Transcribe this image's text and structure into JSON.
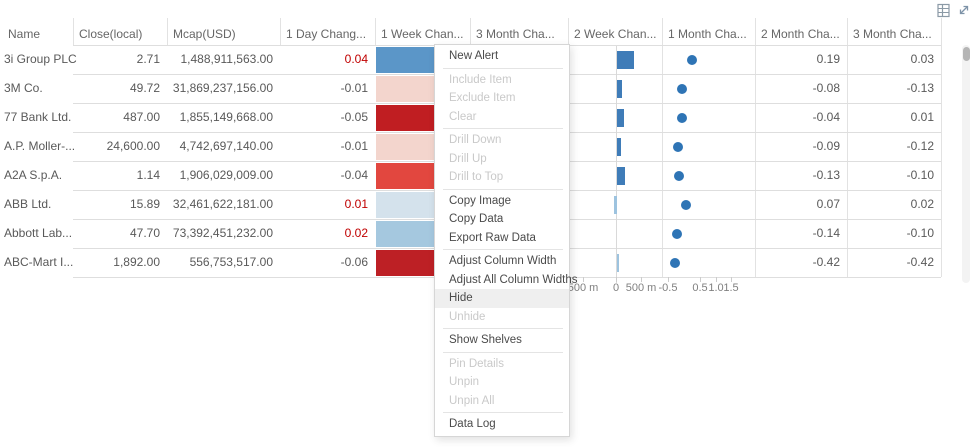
{
  "toolbar": {
    "export_icon": "export-to-excel",
    "expand_icon": "maximize"
  },
  "table": {
    "headers": [
      {
        "id": "name",
        "label": "Name"
      },
      {
        "id": "close",
        "label": "Close(local)"
      },
      {
        "id": "mcap",
        "label": "Mcap(USD)"
      },
      {
        "id": "day1",
        "label": "1 Day Chang..."
      },
      {
        "id": "week1",
        "label": "1 Week Chan..."
      },
      {
        "id": "month3a",
        "label": "3 Month Cha..."
      },
      {
        "id": "week2",
        "label": "2 Week Chan..."
      },
      {
        "id": "month1",
        "label": "1 Month Cha..."
      },
      {
        "id": "month2",
        "label": "2 Month Cha..."
      },
      {
        "id": "month3b",
        "label": "3 Month Cha..."
      }
    ],
    "rows": [
      {
        "name": "3i Group PLC",
        "close": "2.71",
        "mcap": "1,488,911,563.00",
        "day1": "0.04",
        "week1_color": "#5b96c8",
        "week2_bar": 0.34,
        "week2_light": false,
        "month1_dot": 0.25,
        "month2": "0.19",
        "month3": "0.03"
      },
      {
        "name": "3M Co.",
        "close": "49.72",
        "mcap": "31,869,237,156.00",
        "day1": "-0.01",
        "week1_color": "#f3d5cd",
        "week2_bar": 0.1,
        "week2_light": false,
        "month1_dot": -0.06,
        "month2": "-0.08",
        "month3": "-0.13"
      },
      {
        "name": "77 Bank Ltd.",
        "close": "487.00",
        "mcap": "1,855,149,668.00",
        "day1": "-0.05",
        "week1_color": "#c01e22",
        "week2_bar": 0.14,
        "week2_light": false,
        "month1_dot": -0.06,
        "month2": "-0.04",
        "month3": "0.01"
      },
      {
        "name": "A.P. Moller-...",
        "close": "24,600.00",
        "mcap": "4,742,697,140.00",
        "day1": "-0.01",
        "week1_color": "#f3d5cd",
        "week2_bar": 0.08,
        "week2_light": false,
        "month1_dot": -0.19,
        "month2": "-0.09",
        "month3": "-0.12"
      },
      {
        "name": "A2A S.p.A.",
        "close": "1.14",
        "mcap": "1,906,029,009.00",
        "day1": "-0.04",
        "week1_color": "#e2473f",
        "week2_bar": 0.16,
        "week2_light": false,
        "month1_dot": -0.16,
        "month2": "-0.13",
        "month3": "-0.10"
      },
      {
        "name": "ABB Ltd.",
        "close": "15.89",
        "mcap": "32,461,622,181.00",
        "day1": "0.01",
        "week1_color": "#d4e2ec",
        "week2_bar": -0.06,
        "week2_light": true,
        "month1_dot": 0.06,
        "month2": "0.07",
        "month3": "0.02"
      },
      {
        "name": "Abbott Lab...",
        "close": "47.70",
        "mcap": "73,392,451,232.00",
        "day1": "0.02",
        "week1_color": "#a5c8df",
        "week2_bar": 0,
        "week2_light": false,
        "month1_dot": -0.22,
        "month2": "-0.14",
        "month3": "-0.10"
      },
      {
        "name": "ABC-Mart I...",
        "close": "1,892.00",
        "mcap": "556,753,517.00",
        "day1": "-0.06",
        "week1_color": "#bd2025",
        "week2_bar": 0.05,
        "week2_light": true,
        "month1_dot": -0.29,
        "month2": "-0.42",
        "month3": "-0.42"
      }
    ],
    "axis": {
      "bar_ticks": [
        "500 m",
        "0",
        "500 m"
      ],
      "dot_ticks": [
        "-0.5",
        "0.5",
        "1.0",
        "1.5"
      ]
    }
  },
  "context_menu": {
    "items": [
      {
        "label": "New Alert",
        "state": "enabled"
      },
      {
        "type": "separator"
      },
      {
        "label": "Include Item",
        "state": "disabled"
      },
      {
        "label": "Exclude Item",
        "state": "disabled"
      },
      {
        "label": "Clear",
        "state": "disabled"
      },
      {
        "type": "separator"
      },
      {
        "label": "Drill Down",
        "state": "disabled"
      },
      {
        "label": "Drill Up",
        "state": "disabled"
      },
      {
        "label": "Drill to Top",
        "state": "disabled"
      },
      {
        "type": "separator"
      },
      {
        "label": "Copy Image",
        "state": "enabled"
      },
      {
        "label": "Copy Data",
        "state": "enabled"
      },
      {
        "label": "Export Raw Data",
        "state": "enabled"
      },
      {
        "type": "separator"
      },
      {
        "label": "Adjust Column Width",
        "state": "enabled"
      },
      {
        "label": "Adjust All Column Widths",
        "state": "enabled"
      },
      {
        "label": "Hide",
        "state": "hover"
      },
      {
        "label": "Unhide",
        "state": "disabled"
      },
      {
        "type": "separator"
      },
      {
        "label": "Show Shelves",
        "state": "enabled"
      },
      {
        "type": "separator"
      },
      {
        "label": "Pin Details",
        "state": "disabled"
      },
      {
        "label": "Unpin",
        "state": "disabled"
      },
      {
        "label": "Unpin All",
        "state": "disabled"
      },
      {
        "type": "separator"
      },
      {
        "label": "Data Log",
        "state": "enabled"
      }
    ]
  },
  "colors": {
    "positive_text": "#c00000",
    "cell_text": "#595959",
    "bar_fill": "#3f7cb8",
    "bar_fill_light": "#9dc3df",
    "dot_fill": "#2e74b5",
    "gridline": "#dedede"
  }
}
